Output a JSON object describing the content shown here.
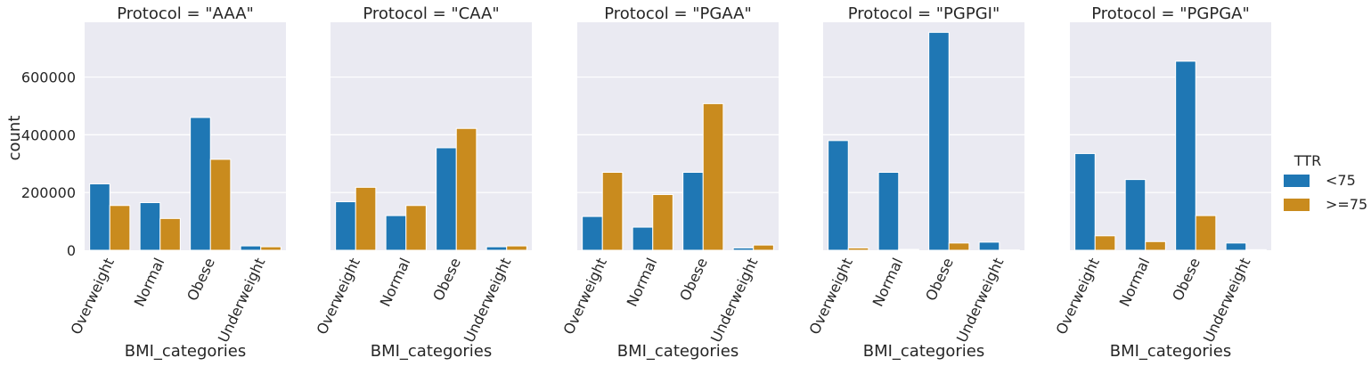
{
  "chart_data": {
    "type": "bar",
    "facet_variable": "Protocol",
    "ylabel": "count",
    "xlabel": "BMI_categories",
    "ylim": [
      0,
      790000
    ],
    "yticks": [
      0,
      200000,
      400000,
      600000
    ],
    "grid": true,
    "legend": {
      "title": "TTR",
      "placement": "right"
    },
    "series": [
      {
        "name": "<75",
        "color": "#1f77b4"
      },
      {
        "name": ">=75",
        "color": "#c98b1e"
      }
    ],
    "categories": [
      "Overweight",
      "Normal",
      "Obese",
      "Underweight"
    ],
    "panels": [
      {
        "title": "Protocol = \"AAA\"",
        "values": {
          "<75": [
            230000,
            165000,
            460000,
            15000
          ],
          ">=75": [
            155000,
            110000,
            315000,
            12000
          ]
        }
      },
      {
        "title": "Protocol = \"CAA\"",
        "values": {
          "<75": [
            168000,
            120000,
            355000,
            12000
          ],
          ">=75": [
            218000,
            155000,
            422000,
            15000
          ]
        }
      },
      {
        "title": "Protocol = \"PGAA\"",
        "values": {
          "<75": [
            117000,
            80000,
            270000,
            8000
          ],
          ">=75": [
            270000,
            193000,
            508000,
            18000
          ]
        }
      },
      {
        "title": "Protocol = \"PGPGI\"",
        "values": {
          "<75": [
            380000,
            270000,
            755000,
            28000
          ],
          ">=75": [
            8000,
            3000,
            25000,
            1000
          ]
        }
      },
      {
        "title": "Protocol = \"PGPGA\"",
        "values": {
          "<75": [
            335000,
            245000,
            655000,
            25000
          ],
          ">=75": [
            50000,
            30000,
            120000,
            2000
          ]
        }
      }
    ]
  }
}
